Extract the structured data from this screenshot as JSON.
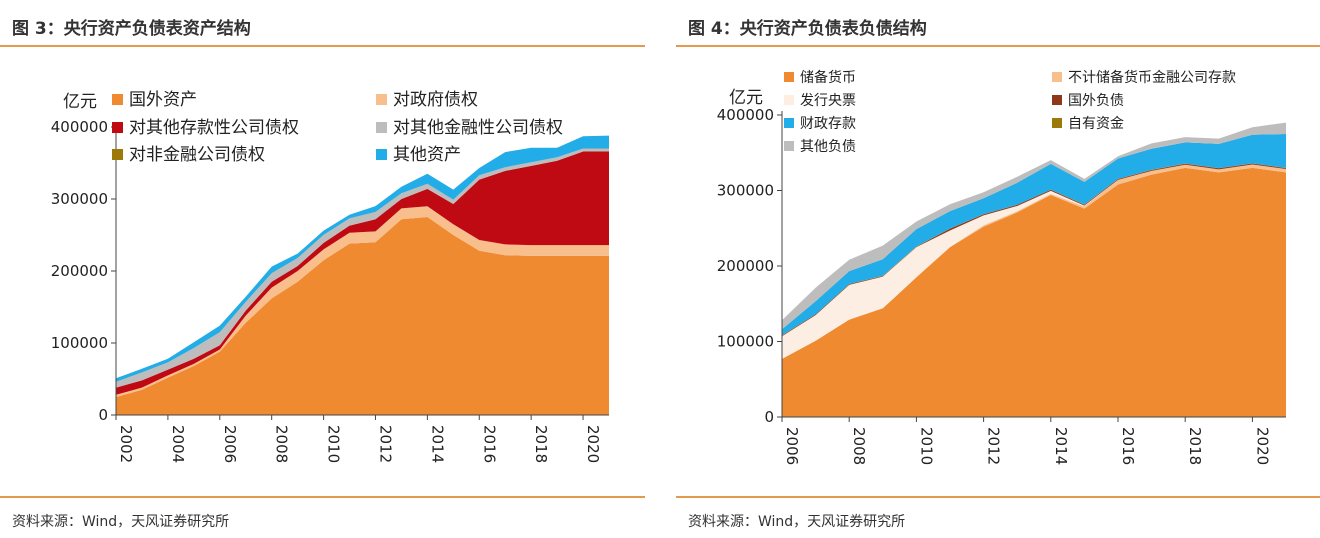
{
  "source_left": "资料来源：Wind，天风证券研究所",
  "source_right": "资料来源：Wind，天风证券研究所",
  "chart_data": [
    {
      "type": "area",
      "stacked": true,
      "title": "图 3：央行资产负债表资产结构",
      "unit": "亿元",
      "x": [
        2002,
        2003,
        2004,
        2005,
        2006,
        2007,
        2008,
        2009,
        2010,
        2011,
        2012,
        2013,
        2014,
        2015,
        2016,
        2017,
        2018,
        2019,
        2020,
        2021
      ],
      "xticks": [
        "2002",
        "2004",
        "2006",
        "2008",
        "2010",
        "2012",
        "2014",
        "2016",
        "2018",
        "2020"
      ],
      "ylim": [
        0,
        400000
      ],
      "yticks": [
        "0",
        "100000",
        "200000",
        "300000",
        "400000"
      ],
      "legend": "top, 2 columns",
      "series": [
        {
          "name": "国外资产",
          "color": "#f08a31",
          "values": [
            25000,
            35000,
            52000,
            68000,
            88000,
            128000,
            162000,
            185000,
            215000,
            238000,
            240000,
            272000,
            275000,
            250000,
            228000,
            222000,
            221000,
            221000,
            221000,
            221000
          ]
        },
        {
          "name": "对政府债权",
          "color": "#f8bf8c",
          "values": [
            3000,
            3000,
            3000,
            3000,
            3000,
            10000,
            15000,
            15000,
            15000,
            15000,
            15000,
            15000,
            15000,
            15000,
            15000,
            15000,
            15000,
            15000,
            15000,
            15000
          ]
        },
        {
          "name": "对其他存款性公司债权",
          "color": "#c00a13",
          "values": [
            10000,
            10000,
            8000,
            7000,
            6000,
            7000,
            8000,
            7000,
            9000,
            10000,
            17000,
            13000,
            24000,
            28000,
            84000,
            102000,
            110000,
            117000,
            130000,
            130000
          ]
        },
        {
          "name": "对其他金融性公司债权",
          "color": "#bdbdbd",
          "values": [
            8000,
            11000,
            10000,
            15000,
            18000,
            12000,
            12000,
            11000,
            11000,
            10000,
            10000,
            8000,
            7000,
            6000,
            6000,
            5000,
            5000,
            5000,
            4000,
            4000
          ]
        },
        {
          "name": "对非金融公司债权",
          "color": "#9c7a0a",
          "values": [
            100,
            100,
            100,
            100,
            100,
            100,
            100,
            100,
            100,
            100,
            100,
            100,
            100,
            100,
            100,
            100,
            100,
            100,
            100,
            100
          ]
        },
        {
          "name": "其他资产",
          "color": "#22ace8",
          "values": [
            5000,
            5000,
            5000,
            8000,
            9000,
            7000,
            9000,
            6000,
            6000,
            5000,
            8000,
            9000,
            14000,
            14000,
            10000,
            21000,
            20000,
            13000,
            17000,
            18000
          ]
        }
      ]
    },
    {
      "type": "area",
      "stacked": true,
      "title": "图 4：央行资产负债表负债结构",
      "unit": "亿元",
      "x": [
        2006,
        2007,
        2008,
        2009,
        2010,
        2011,
        2012,
        2013,
        2014,
        2015,
        2016,
        2017,
        2018,
        2019,
        2020,
        2021
      ],
      "xticks": [
        "2006",
        "2008",
        "2010",
        "2012",
        "2014",
        "2016",
        "2018",
        "2020"
      ],
      "ylim": [
        0,
        400000
      ],
      "yticks": [
        "0",
        "100000",
        "200000",
        "300000",
        "400000"
      ],
      "legend": "top, 2 columns",
      "series": [
        {
          "name": "储备货币",
          "color": "#f08a31",
          "values": [
            77000,
            101000,
            129000,
            144000,
            185000,
            225000,
            252000,
            271000,
            294000,
            276000,
            308000,
            321000,
            330000,
            324000,
            330000,
            324000
          ]
        },
        {
          "name": "不计储备货币金融公司存款",
          "color": "#f8bf8c",
          "values": [
            0,
            0,
            0,
            0,
            0,
            0,
            2000,
            1500,
            1500,
            3000,
            6000,
            5000,
            4000,
            4000,
            4500,
            4500
          ]
        },
        {
          "name": "发行央票",
          "color": "#fdeee3",
          "values": [
            30000,
            34000,
            46000,
            42000,
            40000,
            22000,
            13000,
            7000,
            4000,
            1000,
            0,
            0,
            0,
            0,
            0,
            0
          ]
        },
        {
          "name": "国外负债",
          "color": "#8e3a1a",
          "values": [
            1000,
            1000,
            1000,
            800,
            700,
            2500,
            1500,
            1500,
            1500,
            1200,
            1200,
            1200,
            1500,
            1500,
            1200,
            1200
          ]
        },
        {
          "name": "自有资金",
          "color": "#9c7a0a",
          "values": [
            200,
            200,
            200,
            200,
            200,
            200,
            200,
            200,
            200,
            200,
            200,
            200,
            200,
            200,
            200,
            200
          ]
        },
        {
          "name": "财政存款",
          "color": "#22ace8",
          "values": [
            8000,
            17000,
            17000,
            22000,
            23000,
            23000,
            21000,
            29000,
            34000,
            30000,
            27000,
            28000,
            28000,
            32000,
            38000,
            45000
          ]
        },
        {
          "name": "其他负债",
          "color": "#bdbdbd",
          "values": [
            12000,
            18000,
            15000,
            18000,
            10000,
            9000,
            8000,
            8000,
            5000,
            4000,
            3000,
            7000,
            7000,
            7000,
            10000,
            15000
          ]
        }
      ]
    }
  ]
}
